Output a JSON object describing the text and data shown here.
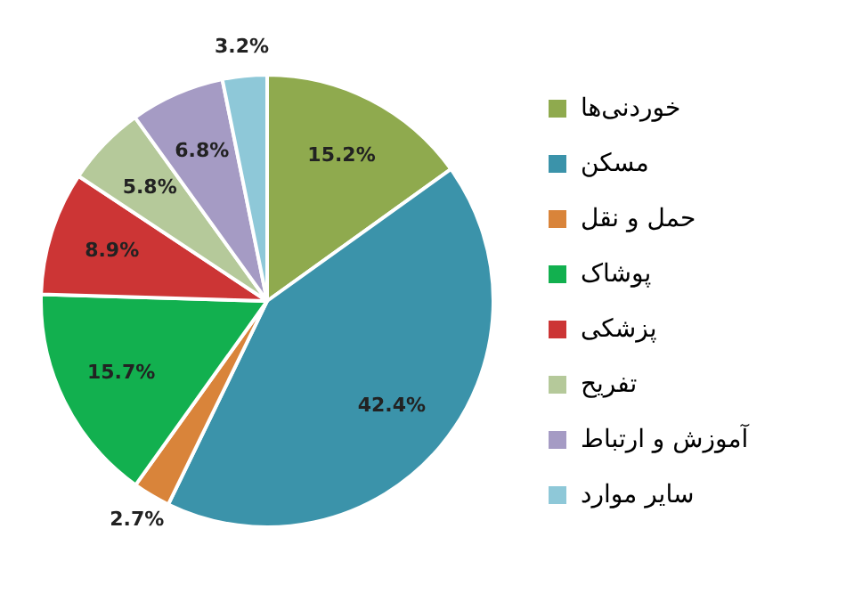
{
  "chart_data": {
    "type": "pie",
    "categories": [
      "خوردنی‌ها",
      "مسکن",
      "حمل و نقل",
      "پوشاک",
      "پزشکی",
      "تفریح",
      "آموزش و ارتباط",
      "سایر موارد"
    ],
    "values": [
      15.2,
      42.4,
      2.7,
      15.7,
      8.9,
      5.8,
      6.8,
      3.2
    ],
    "colors": [
      "#8faa4e",
      "#3b93aa",
      "#d9843a",
      "#12b04f",
      "#cc3535",
      "#b5c99a",
      "#a59bc4",
      "#8ec8d8"
    ],
    "value_labels": [
      "15.2%",
      "42.4%",
      "2.7%",
      "15.7%",
      "8.9%",
      "5.8%",
      "6.8%",
      "3.2%"
    ],
    "legend": "right"
  }
}
